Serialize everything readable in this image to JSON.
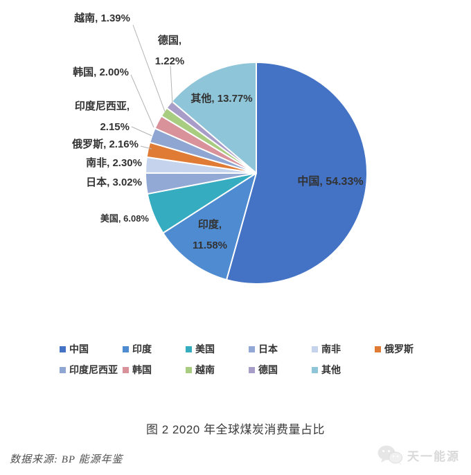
{
  "chart_data": {
    "type": "pie",
    "title": "图 2 2020 年全球煤炭消费量占比",
    "categories": [
      "中国",
      "印度",
      "美国",
      "日本",
      "南非",
      "俄罗斯",
      "印度尼西亚",
      "韩国",
      "越南",
      "德国",
      "其他"
    ],
    "values": [
      54.33,
      11.58,
      6.08,
      3.02,
      2.3,
      2.16,
      2.15,
      2.0,
      1.39,
      1.22,
      13.77
    ],
    "value_labels": [
      "54.33%",
      "11.58%",
      "6.08%",
      "3.02%",
      "2.30%",
      "2.16%",
      "2.15%",
      "2.00%",
      "1.39%",
      "1.22%",
      "13.77%"
    ],
    "colors": [
      "#4472C4",
      "#4E8BD0",
      "#35ACBF",
      "#92A9D6",
      "#C5D4EC",
      "#E07B35",
      "#8FA6D3",
      "#D9919A",
      "#A8CC80",
      "#A89CC8",
      "#8FC5D9"
    ],
    "legend_position": "bottom",
    "direction": "clockwise",
    "start_angle_deg": 0,
    "label_text_color": "#323232",
    "leader_line_color": "#b3b3b3"
  },
  "caption": {
    "figure_title": "图 2 2020 年全球煤炭消费量占比",
    "source": "数据来源: BP 能源年鉴"
  },
  "watermark": {
    "text": "天一能源",
    "icon": "wechat-logo-icon",
    "color": "#d9d9d9"
  }
}
